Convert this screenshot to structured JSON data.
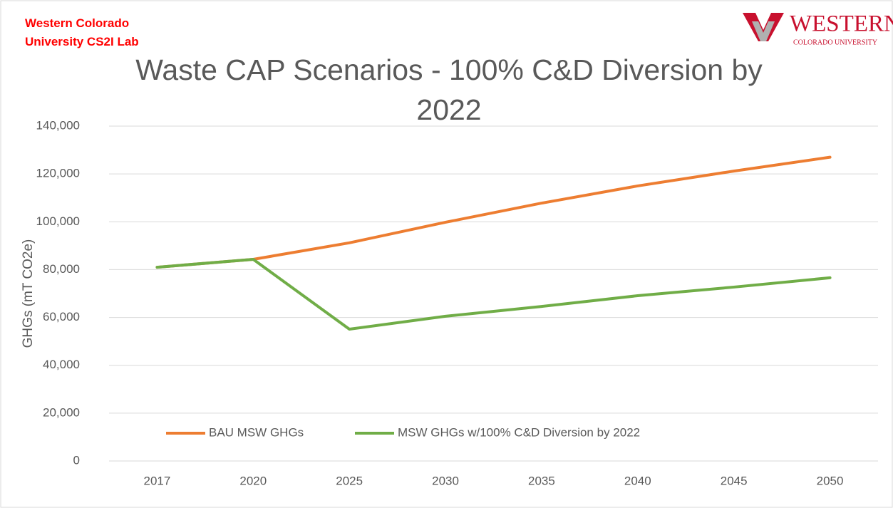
{
  "chart_data": {
    "type": "line",
    "title": "Waste CAP Scenarios - 100% C&D Diversion by 2022",
    "lab_label": "Western Colorado University CS2I Lab",
    "logo_name": "WESTERN",
    "logo_subtitle": "COLORADO UNIVERSITY",
    "y_label": "GHGs (mT CO2e)",
    "categories": [
      "2017",
      "2020",
      "2025",
      "2030",
      "2035",
      "2040",
      "2045",
      "2050"
    ],
    "series": [
      {
        "name": "BAU MSW GHGs",
        "color": "#ed7d31",
        "values": [
          81000,
          84300,
          91200,
          99800,
          107800,
          115000,
          121200,
          127000
        ]
      },
      {
        "name": "MSW GHGs w/100% C&D Diversion by 2022",
        "color": "#70ad47",
        "values": [
          81000,
          84300,
          55100,
          60500,
          64600,
          69100,
          72700,
          76600
        ]
      }
    ],
    "ylim": [
      0,
      140000
    ],
    "yticks": [
      0,
      {
        "value": 20000,
        "label": "20,000"
      },
      {
        "value": 40000,
        "label": "40,000"
      },
      {
        "value": 60000,
        "label": "60,000"
      },
      {
        "value": 80000,
        "label": "80,000"
      },
      {
        "value": 100000,
        "label": "100,000"
      },
      {
        "value": 120000,
        "label": "120,000"
      },
      {
        "value": 140000,
        "label": "140,000"
      }
    ],
    "grid": true,
    "legend": "bottom"
  }
}
